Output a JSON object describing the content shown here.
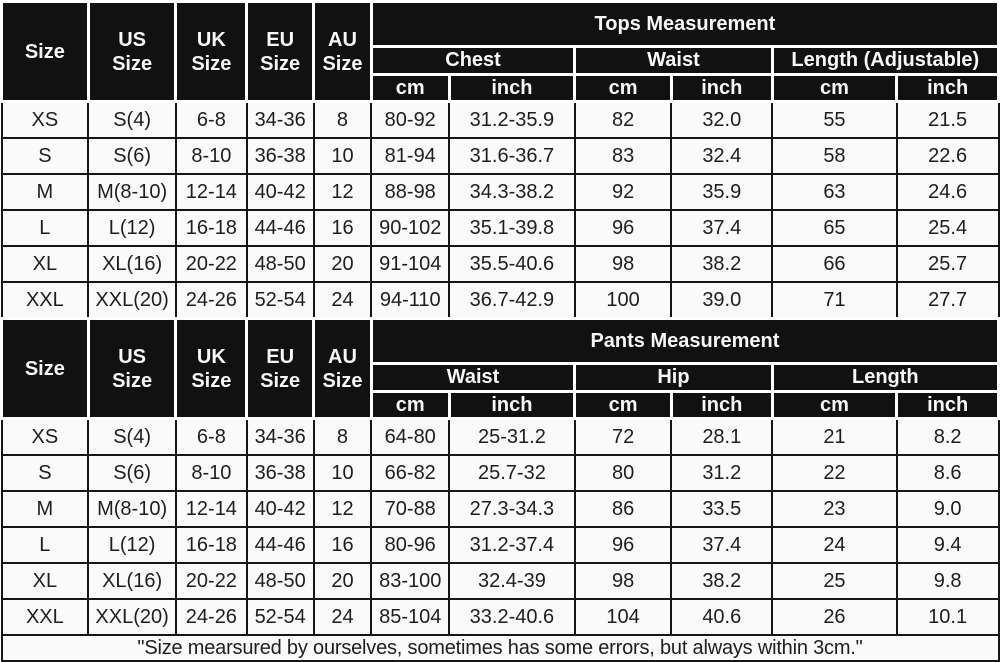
{
  "colors": {
    "header_bg": "#111111",
    "header_text": "#f8f8f8",
    "body_bg": "#fafafa",
    "grid_border": "#161616",
    "body_text": "#1e1e1e"
  },
  "common": {
    "size_headers": [
      "Size",
      "US\nSize",
      "UK\nSize",
      "EU\nSize",
      "AU\nSize"
    ],
    "units": {
      "cm": "cm",
      "inch": "inch"
    }
  },
  "tops": {
    "title": "Tops Measurement",
    "groups": [
      "Chest",
      "Waist",
      "Length (Adjustable)"
    ],
    "rows": [
      [
        "XS",
        "S(4)",
        "6-8",
        "34-36",
        "8",
        "80-92",
        "31.2-35.9",
        "82",
        "32.0",
        "55",
        "21.5"
      ],
      [
        "S",
        "S(6)",
        "8-10",
        "36-38",
        "10",
        "81-94",
        "31.6-36.7",
        "83",
        "32.4",
        "58",
        "22.6"
      ],
      [
        "M",
        "M(8-10)",
        "12-14",
        "40-42",
        "12",
        "88-98",
        "34.3-38.2",
        "92",
        "35.9",
        "63",
        "24.6"
      ],
      [
        "L",
        "L(12)",
        "16-18",
        "44-46",
        "16",
        "90-102",
        "35.1-39.8",
        "96",
        "37.4",
        "65",
        "25.4"
      ],
      [
        "XL",
        "XL(16)",
        "20-22",
        "48-50",
        "20",
        "91-104",
        "35.5-40.6",
        "98",
        "38.2",
        "66",
        "25.7"
      ],
      [
        "XXL",
        "XXL(20)",
        "24-26",
        "52-54",
        "24",
        "94-110",
        "36.7-42.9",
        "100",
        "39.0",
        "71",
        "27.7"
      ]
    ]
  },
  "pants": {
    "title": "Pants Measurement",
    "groups": [
      "Waist",
      "Hip",
      "Length"
    ],
    "rows": [
      [
        "XS",
        "S(4)",
        "6-8",
        "34-36",
        "8",
        "64-80",
        "25-31.2",
        "72",
        "28.1",
        "21",
        "8.2"
      ],
      [
        "S",
        "S(6)",
        "8-10",
        "36-38",
        "10",
        "66-82",
        "25.7-32",
        "80",
        "31.2",
        "22",
        "8.6"
      ],
      [
        "M",
        "M(8-10)",
        "12-14",
        "40-42",
        "12",
        "70-88",
        "27.3-34.3",
        "86",
        "33.5",
        "23",
        "9.0"
      ],
      [
        "L",
        "L(12)",
        "16-18",
        "44-46",
        "16",
        "80-96",
        "31.2-37.4",
        "96",
        "37.4",
        "24",
        "9.4"
      ],
      [
        "XL",
        "XL(16)",
        "20-22",
        "48-50",
        "20",
        "83-100",
        "32.4-39",
        "98",
        "38.2",
        "25",
        "9.8"
      ],
      [
        "XXL",
        "XXL(20)",
        "24-26",
        "52-54",
        "24",
        "85-104",
        "33.2-40.6",
        "104",
        "40.6",
        "26",
        "10.1"
      ]
    ]
  },
  "footer": {
    "note": "\"Size mearsured by ourselves, sometimes has some errors, but always within 3cm.\""
  }
}
